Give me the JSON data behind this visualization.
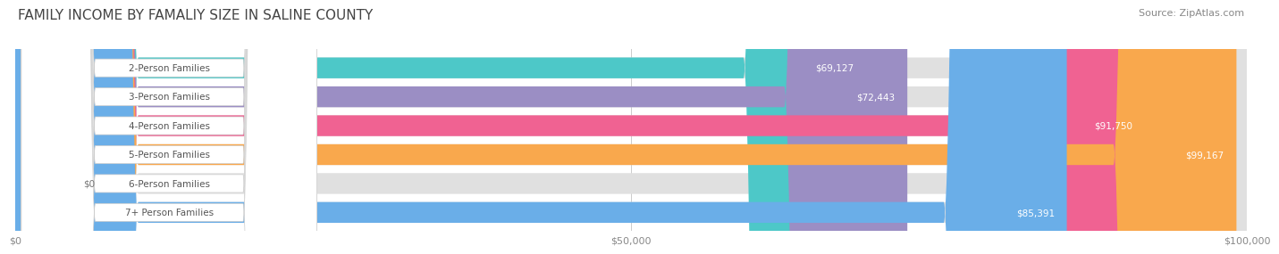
{
  "title": "FAMILY INCOME BY FAMALIY SIZE IN SALINE COUNTY",
  "source": "Source: ZipAtlas.com",
  "categories": [
    "2-Person Families",
    "3-Person Families",
    "4-Person Families",
    "5-Person Families",
    "6-Person Families",
    "7+ Person Families"
  ],
  "values": [
    69127,
    72443,
    91750,
    99167,
    0,
    85391
  ],
  "bar_colors": [
    "#4DC8C8",
    "#9B8EC4",
    "#F06292",
    "#F9A84D",
    "#F48A9A",
    "#6AAEE8"
  ],
  "bar_bg_color": "#E0E0E0",
  "xlim": [
    0,
    100000
  ],
  "xticks": [
    0,
    50000,
    100000
  ],
  "xtick_labels": [
    "$0",
    "$50,000",
    "$100,000"
  ],
  "title_fontsize": 11,
  "source_fontsize": 8,
  "bar_label_fontsize": 7.5,
  "value_fontsize": 7.5,
  "background_color": "#FFFFFF"
}
